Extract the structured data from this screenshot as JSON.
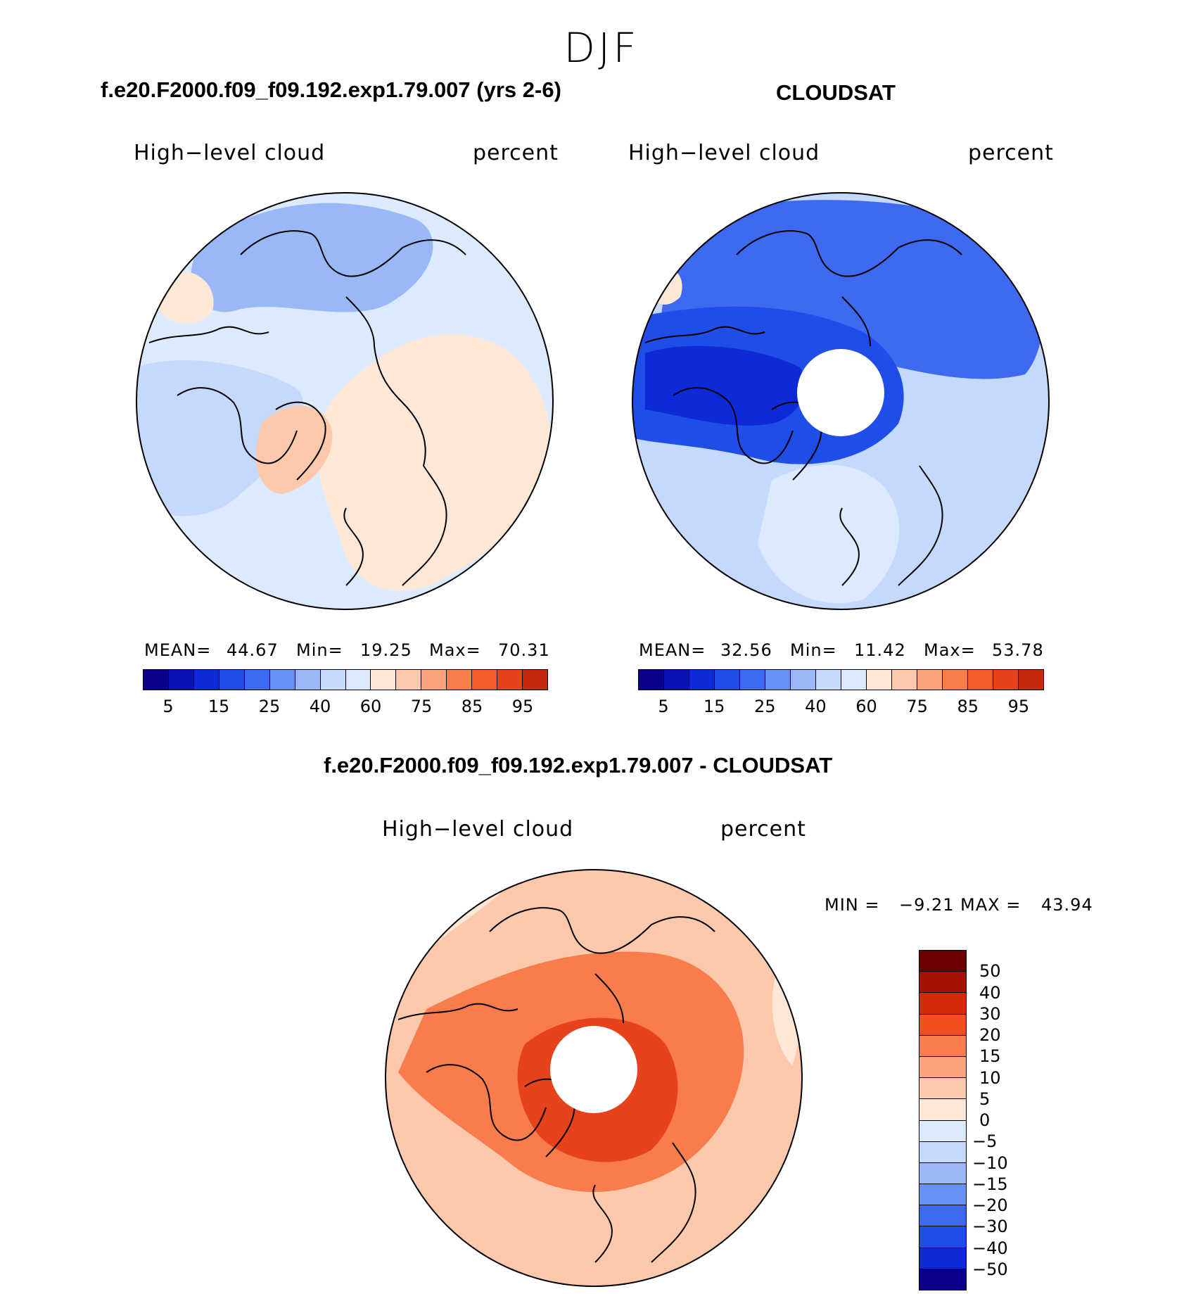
{
  "season": "DJF",
  "colors": {
    "blues": [
      "#08008a",
      "#0a14b4",
      "#0e2ad6",
      "#1f4de8",
      "#3d6af0",
      "#6690f5",
      "#9ab8f8",
      "#c4d9fb",
      "#dceafd"
    ],
    "reds": [
      "#fde8d8",
      "#fcc9ad",
      "#fba47f",
      "#f97c4c",
      "#f45a2a",
      "#e6421c",
      "#c52a0e",
      "#960a04",
      "#6e0000"
    ],
    "land_outline": "#000000"
  },
  "panels": {
    "model": {
      "title": "f.e20.F2000.f09_f09.192.exp1.79.007 (yrs 2-6)",
      "variable": "High−level cloud",
      "units": "percent",
      "stats": {
        "mean_label": "MEAN=",
        "mean": "44.67",
        "min_label": "Min=",
        "min": "19.25",
        "max_label": "Max=",
        "max": "70.31"
      },
      "colorbar_ticks": [
        "5",
        "15",
        "25",
        "40",
        "60",
        "75",
        "85",
        "95"
      ],
      "fill": {
        "base": "#dceafd",
        "regions": [
          {
            "name": "pacific-blue",
            "color": "#9ab8f8"
          },
          {
            "name": "canada-blue",
            "color": "#c4d9fb"
          },
          {
            "name": "atlantic-light",
            "color": "#fde8d8"
          },
          {
            "name": "greenland-orange",
            "color": "#fcc9ad"
          },
          {
            "name": "siberia-blue",
            "color": "#6690f5"
          }
        ]
      },
      "has_pole_hole": false
    },
    "obs": {
      "title": "CLOUDSAT",
      "variable": "High−level cloud",
      "units": "percent",
      "stats": {
        "mean_label": "MEAN=",
        "mean": "32.56",
        "min_label": "Min=",
        "min": "11.42",
        "max_label": "Max=",
        "max": "53.78"
      },
      "colorbar_ticks": [
        "5",
        "15",
        "25",
        "40",
        "60",
        "75",
        "85",
        "95"
      ],
      "fill": {
        "base": "#c4d9fb",
        "regions": [
          {
            "name": "arctic-dark",
            "color": "#1f4de8"
          },
          {
            "name": "canada-dark",
            "color": "#0e2ad6"
          },
          {
            "name": "siberia-mid",
            "color": "#3d6af0"
          },
          {
            "name": "atlantic-light",
            "color": "#dceafd"
          }
        ]
      },
      "has_pole_hole": true
    },
    "diff": {
      "title": "f.e20.F2000.f09_f09.192.exp1.79.007 - CLOUDSAT",
      "variable": "High−level cloud",
      "units": "percent",
      "stats": {
        "min_label": "MIN =",
        "min": "−9.21",
        "max_label": "MAX =",
        "max": "43.94"
      },
      "colorbar_ticks": [
        "50",
        "40",
        "30",
        "20",
        "15",
        "10",
        "5",
        "0",
        "−5",
        "−10",
        "−15",
        "−20",
        "−30",
        "−40",
        "−50"
      ],
      "colorbar_colors": [
        "#6e0000",
        "#a51204",
        "#d42a0c",
        "#f0501f",
        "#f97c4c",
        "#fba47f",
        "#fcc9ad",
        "#fde8d8",
        "#dceafd",
        "#c4d9fb",
        "#9ab8f8",
        "#6690f5",
        "#3d6af0",
        "#1f4de8",
        "#0e2ad6",
        "#08008a"
      ],
      "fill": {
        "base": "#fcc9ad",
        "regions": [
          {
            "name": "arctic-strong",
            "color": "#f45a2a"
          },
          {
            "name": "inner-core",
            "color": "#e6421c"
          },
          {
            "name": "pacific-light",
            "color": "#fde8d8"
          }
        ]
      },
      "has_pole_hole": true
    }
  }
}
